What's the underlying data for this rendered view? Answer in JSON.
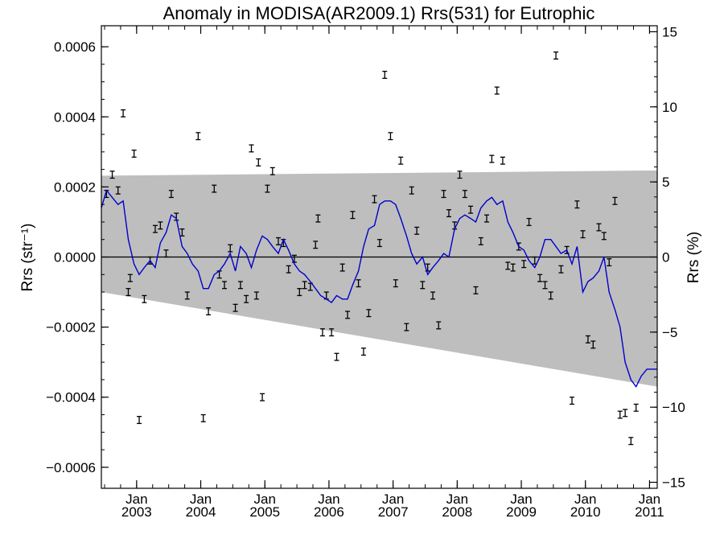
{
  "chart_data": {
    "type": "line",
    "title": "Anomaly in MODISA(AR2009.1) Rrs(531) for Eutrophic",
    "ylabel_left": "Rrs (str⁻¹)",
    "ylabel_right": "Rrs (%)",
    "xlim": [
      2002.45,
      2011.12
    ],
    "ylim_left": [
      -0.00066,
      0.00066
    ],
    "ylim_right": [
      -15.4,
      15.4
    ],
    "x_ticks": [
      {
        "x": 2003,
        "label": "Jan",
        "year": "2003"
      },
      {
        "x": 2004,
        "label": "Jan",
        "year": "2004"
      },
      {
        "x": 2005,
        "label": "Jan",
        "year": "2005"
      },
      {
        "x": 2006,
        "label": "Jan",
        "year": "2006"
      },
      {
        "x": 2007,
        "label": "Jan",
        "year": "2007"
      },
      {
        "x": 2008,
        "label": "Jan",
        "year": "2008"
      },
      {
        "x": 2009,
        "label": "Jan",
        "year": "2009"
      },
      {
        "x": 2010,
        "label": "Jan",
        "year": "2010"
      },
      {
        "x": 2011,
        "label": "Jan",
        "year": "2011"
      }
    ],
    "y_ticks_left": [
      {
        "v": 0.0006,
        "label": "0.0006"
      },
      {
        "v": 0.0004,
        "label": "0.0004"
      },
      {
        "v": 0.0002,
        "label": "0.0002"
      },
      {
        "v": 0.0,
        "label": "0.0000"
      },
      {
        "v": -0.0002,
        "label": "−0.0002"
      },
      {
        "v": -0.0004,
        "label": "−0.0004"
      },
      {
        "v": -0.0006,
        "label": "−0.0006"
      }
    ],
    "y_ticks_right": [
      {
        "v": 15,
        "label": "15"
      },
      {
        "v": 10,
        "label": "10"
      },
      {
        "v": 5,
        "label": "5"
      },
      {
        "v": 0,
        "label": "0"
      },
      {
        "v": -5,
        "label": "−5"
      },
      {
        "v": -10,
        "label": "−10"
      },
      {
        "v": -15,
        "label": "−15"
      }
    ],
    "band": {
      "x": [
        2002.45,
        2011.12
      ],
      "upper": [
        0.000232,
        0.000247
      ],
      "lower": [
        -0.0001,
        -0.00037
      ],
      "color": "#bebebe"
    },
    "zero_line": 0,
    "points": [
      [
        2002.53,
        0.00018
      ],
      [
        2002.62,
        0.000235
      ],
      [
        2002.71,
        0.00019
      ],
      [
        2002.79,
        0.00041
      ],
      [
        2002.87,
        -0.0001
      ],
      [
        2002.9,
        -6e-05
      ],
      [
        2002.96,
        0.000295
      ],
      [
        2003.04,
        -0.000465
      ],
      [
        2003.12,
        -0.00012
      ],
      [
        2003.21,
        -1e-05
      ],
      [
        2003.29,
        8e-05
      ],
      [
        2003.37,
        9e-05
      ],
      [
        2003.46,
        1e-05
      ],
      [
        2003.54,
        0.00018
      ],
      [
        2003.62,
        0.000115
      ],
      [
        2003.71,
        7e-05
      ],
      [
        2003.79,
        -0.00011
      ],
      [
        2003.96,
        0.000345
      ],
      [
        2004.04,
        -0.00046
      ],
      [
        2004.12,
        -0.000155
      ],
      [
        2004.21,
        0.000195
      ],
      [
        2004.29,
        -5e-05
      ],
      [
        2004.37,
        -8e-05
      ],
      [
        2004.46,
        2.5e-05
      ],
      [
        2004.54,
        -0.000145
      ],
      [
        2004.62,
        -8e-05
      ],
      [
        2004.71,
        -0.00012
      ],
      [
        2004.79,
        0.00031
      ],
      [
        2004.87,
        -0.00011
      ],
      [
        2004.9,
        0.00027
      ],
      [
        2004.96,
        -0.0004
      ],
      [
        2005.04,
        0.000195
      ],
      [
        2005.12,
        0.000245
      ],
      [
        2005.21,
        4.5e-05
      ],
      [
        2005.29,
        4e-05
      ],
      [
        2005.37,
        -3.5e-05
      ],
      [
        2005.46,
        -5e-06
      ],
      [
        2005.54,
        -0.0001
      ],
      [
        2005.62,
        -8e-05
      ],
      [
        2005.71,
        -8.5e-05
      ],
      [
        2005.79,
        3.5e-05
      ],
      [
        2005.83,
        0.00011
      ],
      [
        2005.9,
        -0.000215
      ],
      [
        2005.96,
        -0.00011
      ],
      [
        2006.04,
        -0.000215
      ],
      [
        2006.12,
        -0.000285
      ],
      [
        2006.21,
        -3e-05
      ],
      [
        2006.29,
        -0.000165
      ],
      [
        2006.37,
        0.00012
      ],
      [
        2006.46,
        -7.5e-05
      ],
      [
        2006.54,
        -0.00027
      ],
      [
        2006.62,
        -0.00016
      ],
      [
        2006.71,
        0.000165
      ],
      [
        2006.79,
        4e-05
      ],
      [
        2006.87,
        0.00052
      ],
      [
        2006.96,
        0.000345
      ],
      [
        2007.04,
        -7.5e-05
      ],
      [
        2007.12,
        0.000275
      ],
      [
        2007.21,
        -0.0002
      ],
      [
        2007.29,
        0.00019
      ],
      [
        2007.37,
        7.5e-05
      ],
      [
        2007.46,
        -8e-05
      ],
      [
        2007.54,
        -3e-05
      ],
      [
        2007.62,
        -0.00011
      ],
      [
        2007.71,
        -0.000195
      ],
      [
        2007.79,
        0.00018
      ],
      [
        2007.87,
        0.000125
      ],
      [
        2007.96,
        9e-05
      ],
      [
        2008.04,
        0.000235
      ],
      [
        2008.12,
        0.00018
      ],
      [
        2008.21,
        0.000135
      ],
      [
        2008.29,
        -9.5e-05
      ],
      [
        2008.37,
        4.5e-05
      ],
      [
        2008.46,
        0.00011
      ],
      [
        2008.54,
        0.00028
      ],
      [
        2008.62,
        0.000475
      ],
      [
        2008.71,
        0.000275
      ],
      [
        2008.79,
        -2.5e-05
      ],
      [
        2008.87,
        -3e-05
      ],
      [
        2008.96,
        3e-05
      ],
      [
        2009.04,
        -2e-05
      ],
      [
        2009.12,
        0.0001
      ],
      [
        2009.21,
        -1e-05
      ],
      [
        2009.29,
        -6e-05
      ],
      [
        2009.37,
        -8e-05
      ],
      [
        2009.46,
        -0.00011
      ],
      [
        2009.54,
        0.000575
      ],
      [
        2009.62,
        -3.5e-05
      ],
      [
        2009.71,
        2e-05
      ],
      [
        2009.79,
        -0.00041
      ],
      [
        2009.87,
        0.00015
      ],
      [
        2009.96,
        6.5e-05
      ],
      [
        2010.04,
        -0.000235
      ],
      [
        2010.12,
        -0.00025
      ],
      [
        2010.21,
        8.5e-05
      ],
      [
        2010.29,
        6e-05
      ],
      [
        2010.37,
        -1.5e-05
      ],
      [
        2010.46,
        0.00016
      ],
      [
        2010.54,
        -0.00045
      ],
      [
        2010.62,
        -0.000445
      ],
      [
        2010.71,
        -0.000525
      ],
      [
        2010.79,
        -0.00043
      ]
    ],
    "error_half": 1e-05,
    "smooth_line": {
      "color": "#0000cc",
      "x": [
        2002.45,
        2002.53,
        2002.62,
        2002.71,
        2002.79,
        2002.87,
        2002.96,
        2003.04,
        2003.12,
        2003.21,
        2003.29,
        2003.37,
        2003.46,
        2003.54,
        2003.62,
        2003.71,
        2003.79,
        2003.87,
        2003.96,
        2004.04,
        2004.12,
        2004.21,
        2004.29,
        2004.37,
        2004.46,
        2004.54,
        2004.62,
        2004.71,
        2004.79,
        2004.87,
        2004.96,
        2005.04,
        2005.12,
        2005.21,
        2005.29,
        2005.37,
        2005.46,
        2005.54,
        2005.62,
        2005.71,
        2005.79,
        2005.87,
        2005.96,
        2006.04,
        2006.12,
        2006.21,
        2006.29,
        2006.37,
        2006.46,
        2006.54,
        2006.62,
        2006.71,
        2006.79,
        2006.87,
        2006.96,
        2007.04,
        2007.12,
        2007.21,
        2007.29,
        2007.37,
        2007.46,
        2007.54,
        2007.62,
        2007.71,
        2007.79,
        2007.87,
        2007.96,
        2008.04,
        2008.12,
        2008.21,
        2008.29,
        2008.37,
        2008.46,
        2008.54,
        2008.62,
        2008.71,
        2008.79,
        2008.87,
        2008.96,
        2009.04,
        2009.12,
        2009.21,
        2009.29,
        2009.37,
        2009.46,
        2009.54,
        2009.62,
        2009.71,
        2009.79,
        2009.87,
        2009.96,
        2010.04,
        2010.12,
        2010.21,
        2010.29,
        2010.37,
        2010.46,
        2010.54,
        2010.62,
        2010.71,
        2010.79,
        2010.87,
        2010.96,
        2011.04,
        2011.12
      ],
      "y": [
        0.00014,
        0.00019,
        0.00017,
        0.00015,
        0.00016,
        5e-05,
        -2e-05,
        -5e-05,
        -3e-05,
        -1e-05,
        -3e-05,
        4e-05,
        7e-05,
        0.00012,
        0.00011,
        3e-05,
        1e-05,
        -2e-05,
        -4e-05,
        -9e-05,
        -9e-05,
        -5e-05,
        -4e-05,
        -2e-05,
        1e-05,
        -4e-05,
        3e-05,
        1e-05,
        -3e-05,
        2e-05,
        6e-05,
        5e-05,
        3e-05,
        1e-05,
        5e-05,
        2e-05,
        -2e-05,
        -4e-05,
        -5e-05,
        -7e-05,
        -9e-05,
        -0.00011,
        -0.00012,
        -0.00013,
        -0.00011,
        -0.00012,
        -0.00012,
        -8e-05,
        -4e-05,
        3e-05,
        8e-05,
        9e-05,
        0.00015,
        0.00016,
        0.00016,
        0.00015,
        0.00011,
        6e-05,
        1e-05,
        -2e-05,
        0.0,
        -5e-05,
        -3e-05,
        -1e-05,
        1e-05,
        0.0,
        8e-05,
        0.00011,
        0.00012,
        0.00011,
        0.0001,
        0.00014,
        0.00016,
        0.00017,
        0.00015,
        0.00016,
        0.0001,
        7e-05,
        3e-05,
        2e-05,
        -1e-05,
        -3e-05,
        0.0,
        5e-05,
        5e-05,
        3e-05,
        1e-05,
        2e-05,
        -2e-05,
        3e-05,
        -0.0001,
        -7e-05,
        -6e-05,
        -4e-05,
        0.0,
        -0.0001,
        -0.00015,
        -0.0002,
        -0.0003,
        -0.00035,
        -0.00037,
        -0.00034,
        -0.00032,
        -0.00032,
        -0.00032
      ]
    }
  }
}
